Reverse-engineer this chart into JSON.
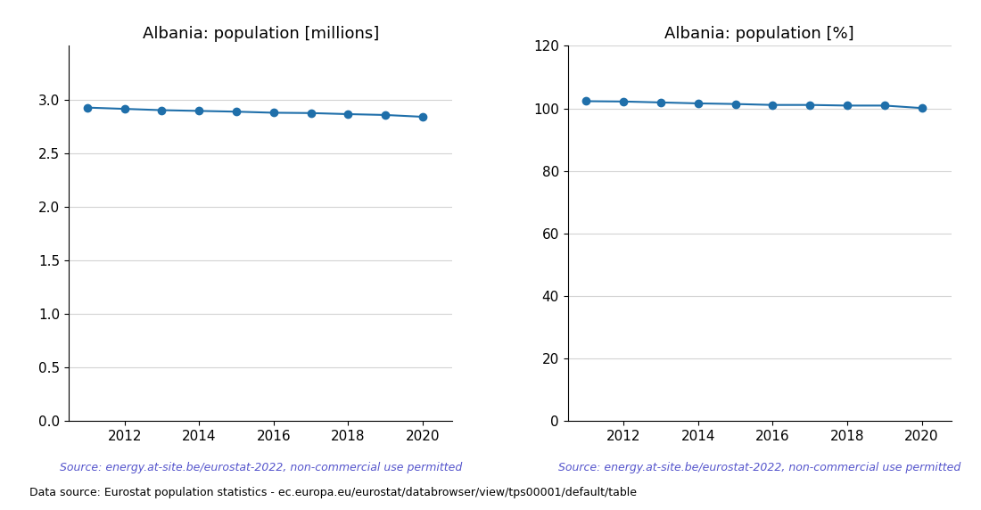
{
  "years": [
    2011,
    2012,
    2013,
    2014,
    2015,
    2016,
    2017,
    2018,
    2019,
    2020
  ],
  "pop_millions": [
    2.924,
    2.912,
    2.9,
    2.893,
    2.886,
    2.876,
    2.873,
    2.863,
    2.855,
    2.838
  ],
  "pop_percent": [
    102.3,
    102.2,
    101.9,
    101.6,
    101.4,
    101.1,
    101.1,
    100.9,
    100.9,
    100.1
  ],
  "title_left": "Albania: population [millions]",
  "title_right": "Albania: population [%]",
  "source_text": "Source: energy.at-site.be/eurostat-2022, non-commercial use permitted",
  "footer_text": "Data source: Eurostat population statistics - ec.europa.eu/eurostat/databrowser/view/tps00001/default/table",
  "line_color": "#1f6faa",
  "source_color": "#5555cc",
  "ylim_left": [
    0.0,
    3.5
  ],
  "ylim_right": [
    0,
    120
  ],
  "yticks_left": [
    0.0,
    0.5,
    1.0,
    1.5,
    2.0,
    2.5,
    3.0
  ],
  "yticks_right": [
    0,
    20,
    40,
    60,
    80,
    100,
    120
  ],
  "figsize": [
    11.0,
    5.72
  ],
  "dpi": 100
}
